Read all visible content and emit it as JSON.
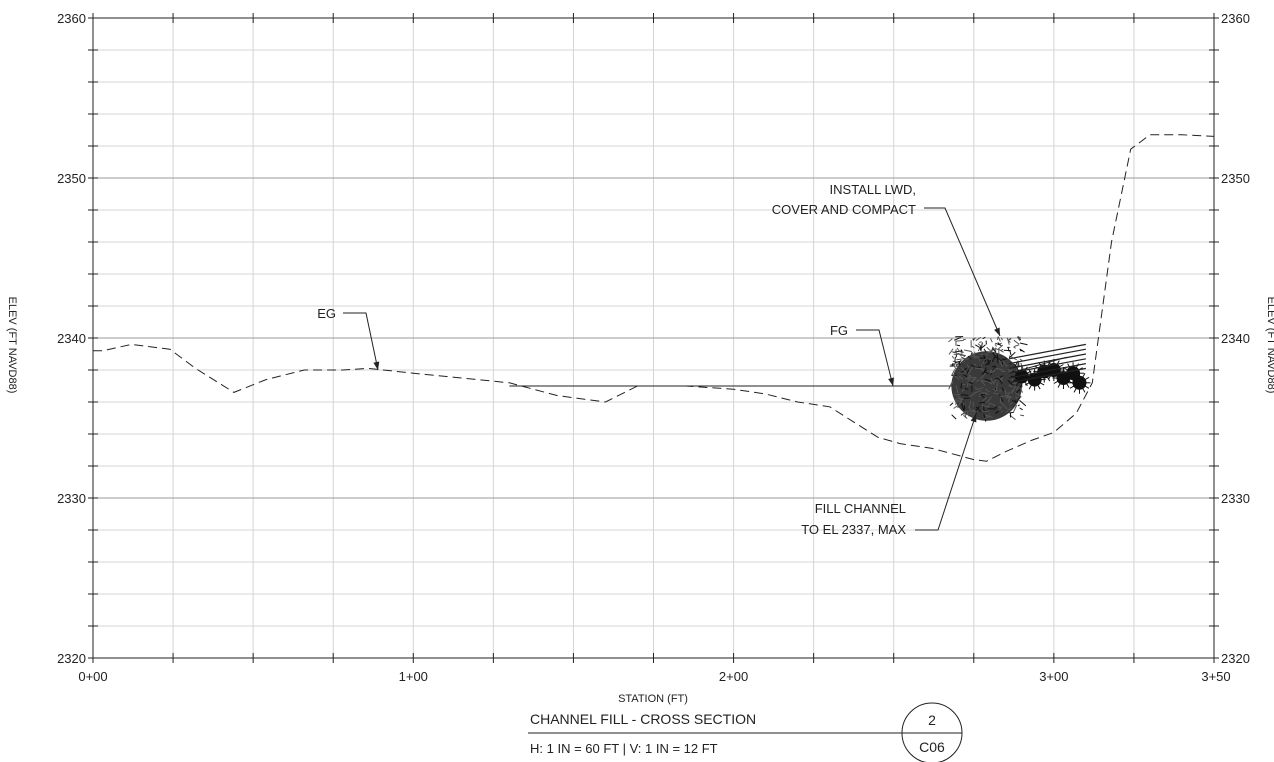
{
  "chart_data": {
    "type": "line",
    "xlabel": "STATION (FT)",
    "ylabel": "ELEV (FT NAVD88)",
    "ylabel_right": "ELEV (FT NAVD88)",
    "xlim": [
      0,
      350
    ],
    "ylim": [
      2320,
      2360
    ],
    "x_ticks": [
      {
        "value": 0,
        "label": "0+00"
      },
      {
        "value": 100,
        "label": "1+00"
      },
      {
        "value": 200,
        "label": "2+00"
      },
      {
        "value": 300,
        "label": "3+00"
      },
      {
        "value": 350,
        "label": "3+50"
      }
    ],
    "y_ticks": [
      {
        "value": 2320,
        "label": "2320"
      },
      {
        "value": 2330,
        "label": "2330"
      },
      {
        "value": 2340,
        "label": "2340"
      },
      {
        "value": 2350,
        "label": "2350"
      },
      {
        "value": 2360,
        "label": "2360"
      }
    ],
    "grid": true,
    "series": [
      {
        "name": "EG",
        "style": "dashed",
        "x": [
          0,
          3,
          12,
          24,
          32,
          44,
          54,
          66,
          78,
          86,
          100,
          110,
          120,
          130,
          145,
          160,
          170,
          185,
          200,
          210,
          220,
          230,
          245,
          252,
          262,
          275,
          279,
          285,
          293,
          300,
          307,
          312,
          318,
          324,
          330,
          340,
          350
        ],
        "y": [
          2339.2,
          2339.2,
          2339.6,
          2339.3,
          2338.1,
          2336.6,
          2337.4,
          2338.0,
          2338.0,
          2338.1,
          2337.8,
          2337.6,
          2337.4,
          2337.2,
          2336.4,
          2336.0,
          2337.0,
          2337.0,
          2336.8,
          2336.5,
          2336.0,
          2335.7,
          2333.8,
          2333.4,
          2333.1,
          2332.4,
          2332.3,
          2332.9,
          2333.6,
          2334.1,
          2335.3,
          2337.2,
          2346.0,
          2351.8,
          2352.7,
          2352.7,
          2352.6
        ]
      },
      {
        "name": "FG",
        "style": "solid",
        "x": [
          130,
          272,
          304
        ],
        "y": [
          2337.0,
          2337.0,
          2338.8
        ]
      }
    ],
    "annotations": [
      {
        "id": "eg",
        "lines": [
          "EG"
        ]
      },
      {
        "id": "fg",
        "lines": [
          "FG"
        ]
      },
      {
        "id": "lwd",
        "lines": [
          "INSTALL LWD,",
          "COVER AND COMPACT"
        ]
      },
      {
        "id": "fill",
        "lines": [
          "FILL CHANNEL",
          "TO EL 2337, MAX"
        ]
      }
    ]
  },
  "title_block": {
    "title": "CHANNEL FILL - CROSS SECTION",
    "scale": "H: 1 IN = 60 FT | V: 1 IN = 12 FT",
    "detail_number": "2",
    "sheet": "C06"
  }
}
